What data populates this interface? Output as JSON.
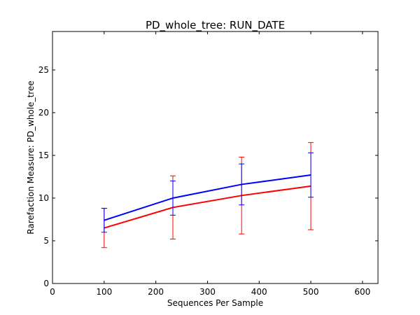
{
  "chart_data": {
    "type": "line",
    "title": "PD_whole_tree: RUN_DATE",
    "xlabel": "Sequences Per Sample",
    "ylabel": "Rarefaction Measure: PD_whole_tree",
    "xlim": [
      0,
      630
    ],
    "ylim": [
      0,
      29.5
    ],
    "xticks": [
      0,
      100,
      200,
      300,
      400,
      500,
      600
    ],
    "yticks": [
      0,
      5,
      10,
      15,
      20,
      25
    ],
    "grid": false,
    "legend": "none",
    "series": [
      {
        "color": "#0000ff",
        "x": [
          100,
          233,
          366,
          500
        ],
        "y": [
          7.4,
          10.0,
          11.6,
          12.7
        ],
        "err": [
          1.4,
          2.0,
          2.4,
          2.6
        ]
      },
      {
        "color": "#ff0000",
        "x": [
          100,
          233,
          366,
          500
        ],
        "y": [
          6.5,
          8.9,
          10.3,
          11.4
        ],
        "err": [
          2.3,
          3.7,
          4.5,
          5.1
        ]
      }
    ]
  }
}
